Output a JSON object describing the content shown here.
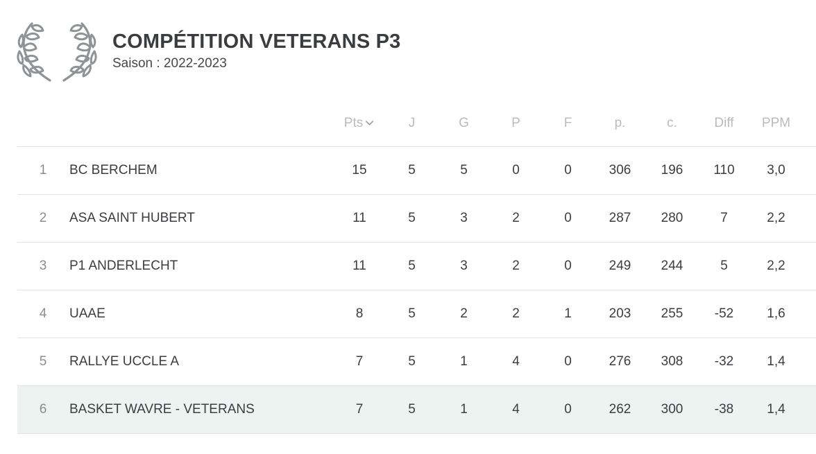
{
  "header": {
    "title": "COMPÉTITION VETERANS P3",
    "season": "Saison : 2022-2023",
    "emblem_icon": "laurel-wreath-icon",
    "emblem_color": "#8e9398"
  },
  "table": {
    "columns": {
      "pts": "Pts",
      "j": "J",
      "g": "G",
      "p": "P",
      "f": "F",
      "pp": "p.",
      "c": "c.",
      "diff": "Diff",
      "ppm": "PPM"
    },
    "sort_icon": "chevron-down-icon",
    "highlight_color": "#ecf3f1",
    "rows": [
      {
        "rank": "1",
        "team": "BC BERCHEM",
        "pts": "15",
        "j": "5",
        "g": "5",
        "p": "0",
        "f": "0",
        "pp": "306",
        "c": "196",
        "diff": "110",
        "ppm": "3,0"
      },
      {
        "rank": "2",
        "team": "ASA SAINT HUBERT",
        "pts": "11",
        "j": "5",
        "g": "3",
        "p": "2",
        "f": "0",
        "pp": "287",
        "c": "280",
        "diff": "7",
        "ppm": "2,2"
      },
      {
        "rank": "3",
        "team": "P1 ANDERLECHT",
        "pts": "11",
        "j": "5",
        "g": "3",
        "p": "2",
        "f": "0",
        "pp": "249",
        "c": "244",
        "diff": "5",
        "ppm": "2,2"
      },
      {
        "rank": "4",
        "team": "UAAE",
        "pts": "8",
        "j": "5",
        "g": "2",
        "p": "2",
        "f": "1",
        "pp": "203",
        "c": "255",
        "diff": "-52",
        "ppm": "1,6"
      },
      {
        "rank": "5",
        "team": "RALLYE UCCLE A",
        "pts": "7",
        "j": "5",
        "g": "1",
        "p": "4",
        "f": "0",
        "pp": "276",
        "c": "308",
        "diff": "-32",
        "ppm": "1,4"
      },
      {
        "rank": "6",
        "team": "BASKET WAVRE - VETERANS",
        "pts": "7",
        "j": "5",
        "g": "1",
        "p": "4",
        "f": "0",
        "pp": "262",
        "c": "300",
        "diff": "-38",
        "ppm": "1,4"
      }
    ]
  }
}
